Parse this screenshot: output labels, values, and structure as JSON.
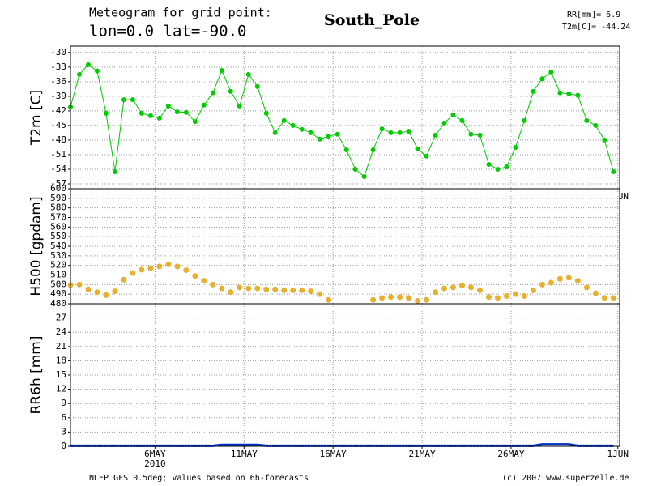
{
  "header": {
    "line1": "Meteogram for grid point:",
    "line2": "lon=0.0 lat=-90.0",
    "place": "South_Pole",
    "rr": "RR[mm]= 6.9",
    "t2m": "T2m[C]= -44.24"
  },
  "footer": {
    "left": "NCEP GFS 0.5deg; values based on 6h-forecasts",
    "right": "(c) 2007 www.superzelle.de"
  },
  "chart_data": [
    {
      "type": "line",
      "ylabel": "T2m [C]",
      "color": "#00cc00",
      "grid": true,
      "xlim": [
        1.25,
        32.1
      ],
      "ylim": [
        -58,
        -28.7
      ],
      "yticks": [
        -30,
        -33,
        -36,
        -39,
        -42,
        -45,
        -48,
        -51,
        -54,
        -57
      ],
      "xticks": [
        {
          "value": 6,
          "label": "6MAY"
        },
        {
          "value": 11,
          "label": "11MAY"
        },
        {
          "value": 16,
          "label": "16MAY"
        },
        {
          "value": 21,
          "label": "21MAY"
        },
        {
          "value": 26,
          "label": "26MAY"
        },
        {
          "value": 32,
          "label": "1JUN"
        }
      ],
      "year": "2010",
      "x": [
        1.25,
        1.75,
        2.25,
        2.75,
        3.25,
        3.75,
        4.25,
        4.75,
        5.25,
        5.75,
        6.25,
        6.75,
        7.25,
        7.75,
        8.25,
        8.75,
        9.25,
        9.75,
        10.25,
        10.75,
        11.25,
        11.75,
        12.25,
        12.75,
        13.25,
        13.75,
        14.25,
        14.75,
        15.25,
        15.75,
        16.25,
        16.75,
        17.25,
        17.75,
        18.25,
        18.75,
        19.25,
        19.75,
        20.25,
        20.75,
        21.25,
        21.75,
        22.25,
        22.75,
        23.25,
        23.75,
        24.25,
        24.75,
        25.25,
        25.75,
        26.25,
        26.75,
        27.25,
        27.75,
        28.25,
        28.75,
        29.25,
        29.75,
        30.25,
        30.75,
        31.25,
        31.75
      ],
      "values": [
        -41.2,
        -34.5,
        -32.5,
        -33.8,
        -42.5,
        -54.5,
        -39.7,
        -39.7,
        -42.5,
        -43,
        -43.5,
        -41,
        -42.2,
        -42.3,
        -44.2,
        -40.8,
        -38.3,
        -33.7,
        -38,
        -41,
        -34.5,
        -37,
        -42.5,
        -46.5,
        -44,
        -45,
        -45.8,
        -46.5,
        -47.8,
        -47.2,
        -46.8,
        -50,
        -54,
        -55.5,
        -50,
        -45.7,
        -46.5,
        -46.5,
        -46.2,
        -49.8,
        -51.3,
        -47,
        -44.5,
        -42.8,
        -44,
        -46.8,
        -47,
        -53,
        -54,
        -53.5,
        -49.5,
        -44,
        -38,
        -35.4,
        -34,
        -38.3,
        -38.5,
        -38.8,
        -44,
        -45,
        -48,
        -54.5
      ]
    },
    {
      "type": "scatter",
      "ylabel": "H500 [gpdam]",
      "color": "#e8b030",
      "grid": true,
      "xlim": [
        1.25,
        32.1
      ],
      "ylim": [
        480,
        600
      ],
      "yticks": [
        480,
        490,
        500,
        510,
        520,
        530,
        540,
        550,
        560,
        570,
        580,
        590,
        600
      ],
      "x": [
        1.25,
        1.75,
        2.25,
        2.75,
        3.25,
        3.75,
        4.25,
        4.75,
        5.25,
        5.75,
        6.25,
        6.75,
        7.25,
        7.75,
        8.25,
        8.75,
        9.25,
        9.75,
        10.25,
        10.75,
        11.25,
        11.75,
        12.25,
        12.75,
        13.25,
        13.75,
        14.25,
        14.75,
        15.25,
        15.75,
        16.25,
        16.75,
        17.25,
        17.75,
        18.25,
        18.75,
        19.25,
        19.75,
        20.25,
        20.75,
        21.25,
        21.75,
        22.25,
        22.75,
        23.25,
        23.75,
        24.25,
        24.75,
        25.25,
        25.75,
        26.25,
        26.75,
        27.25,
        27.75,
        28.25,
        28.75,
        29.25,
        29.75,
        30.25,
        30.75,
        31.25,
        31.75
      ],
      "values": [
        499.5,
        500,
        495,
        492,
        489,
        493,
        505,
        512,
        515.5,
        517,
        519,
        521,
        519,
        515,
        509,
        504,
        500,
        496,
        492,
        497,
        496,
        496,
        495,
        495,
        494,
        494,
        494,
        493,
        490,
        484,
        null,
        null,
        null,
        null,
        484,
        486,
        487,
        487,
        486,
        483,
        484,
        492,
        496,
        497,
        499,
        497,
        494,
        487,
        486,
        488,
        490,
        488,
        494,
        500,
        502,
        506,
        507,
        504,
        497,
        491,
        486,
        486
      ]
    },
    {
      "type": "line",
      "ylabel": "RR6h [mm]",
      "color": "#0033cc",
      "grid": true,
      "xlim": [
        1.25,
        32.1
      ],
      "ylim": [
        0,
        30
      ],
      "yticks": [
        0,
        3,
        6,
        9,
        12,
        15,
        18,
        21,
        24,
        27
      ],
      "xticks": [
        {
          "value": 6,
          "label": "6MAY"
        },
        {
          "value": 11,
          "label": "11MAY"
        },
        {
          "value": 16,
          "label": "16MAY"
        },
        {
          "value": 21,
          "label": "21MAY"
        },
        {
          "value": 26,
          "label": "26MAY"
        },
        {
          "value": 32,
          "label": "1JUN"
        }
      ],
      "year": "2010",
      "x": [
        1.25,
        1.75,
        2.25,
        2.75,
        3.25,
        3.75,
        4.25,
        4.75,
        5.25,
        5.75,
        6.25,
        6.75,
        7.25,
        7.75,
        8.25,
        8.75,
        9.25,
        9.75,
        10.25,
        10.75,
        11.25,
        11.75,
        12.25,
        12.75,
        13.25,
        13.75,
        14.25,
        14.75,
        15.25,
        15.75,
        16.25,
        16.75,
        17.25,
        17.75,
        18.25,
        18.75,
        19.25,
        19.75,
        20.25,
        20.75,
        21.25,
        21.75,
        22.25,
        22.75,
        23.25,
        23.75,
        24.25,
        24.75,
        25.25,
        25.75,
        26.25,
        26.75,
        27.25,
        27.75,
        28.25,
        28.75,
        29.25,
        29.75,
        30.25,
        30.75,
        31.25,
        31.75
      ],
      "values": [
        0.1,
        0.1,
        0.1,
        0.1,
        0.1,
        0.1,
        0.1,
        0.1,
        0.1,
        0.1,
        0.1,
        0.1,
        0.1,
        0.1,
        0.1,
        0.1,
        0.1,
        0.3,
        0.3,
        0.3,
        0.3,
        0.3,
        0.1,
        0.1,
        0.1,
        0.1,
        0.1,
        0.1,
        0.1,
        0.1,
        0.1,
        0.1,
        0.1,
        0.1,
        0.1,
        0.1,
        0.1,
        0.1,
        0.1,
        0.1,
        0.1,
        0.1,
        0.1,
        0.1,
        0.1,
        0.1,
        0.1,
        0.1,
        0.1,
        0.1,
        0.1,
        0.1,
        0.1,
        0.4,
        0.4,
        0.4,
        0.4,
        0.1,
        0.1,
        0.1,
        0.1,
        0.1
      ]
    }
  ]
}
